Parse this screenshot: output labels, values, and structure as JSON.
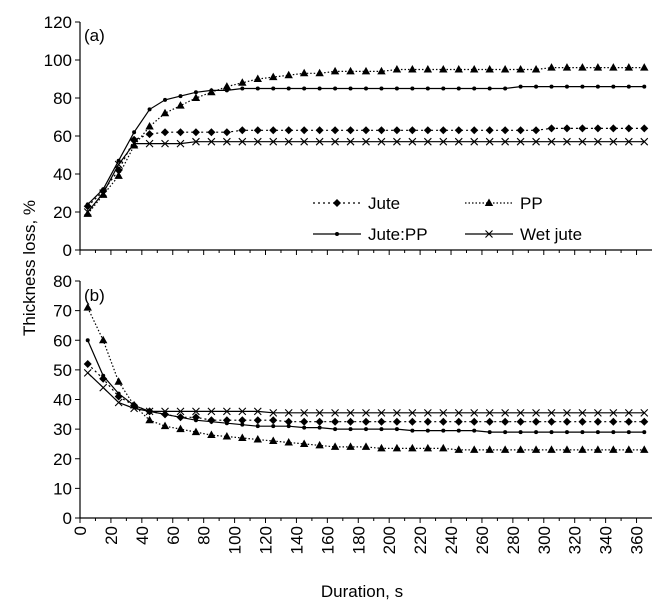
{
  "chart_data": [
    {
      "panel": "(a)",
      "type": "line",
      "ylim": [
        0,
        120
      ],
      "yticks": [
        0,
        20,
        40,
        60,
        80,
        100,
        120
      ],
      "xlim": [
        0,
        370
      ],
      "x": [
        5,
        15,
        25,
        35,
        45,
        55,
        65,
        75,
        85,
        95,
        105,
        115,
        125,
        135,
        145,
        155,
        165,
        175,
        185,
        195,
        205,
        215,
        225,
        235,
        245,
        255,
        265,
        275,
        285,
        295,
        305,
        315,
        325,
        335,
        345,
        355,
        365
      ],
      "series": [
        {
          "name": "Jute",
          "values": [
            23,
            31,
            42,
            58,
            61,
            62,
            62,
            62,
            62,
            62,
            63,
            63,
            63,
            63,
            63,
            63,
            63,
            63,
            63,
            63,
            63,
            63,
            63,
            63,
            63,
            63,
            63,
            63,
            63,
            63,
            64,
            64,
            64,
            64,
            64,
            64,
            64
          ]
        },
        {
          "name": "PP",
          "values": [
            19,
            29,
            39,
            55,
            65,
            72,
            76,
            80,
            83,
            86,
            88,
            90,
            91,
            92,
            93,
            93,
            94,
            94,
            94,
            94,
            95,
            95,
            95,
            95,
            95,
            95,
            95,
            95,
            95,
            95,
            96,
            96,
            96,
            96,
            96,
            96,
            96
          ]
        },
        {
          "name": "Jute:PP",
          "values": [
            24,
            32,
            47,
            62,
            74,
            79,
            81,
            83,
            84,
            84,
            85,
            85,
            85,
            85,
            85,
            85,
            85,
            85,
            85,
            85,
            85,
            85,
            85,
            85,
            85,
            85,
            85,
            85,
            86,
            86,
            86,
            86,
            86,
            86,
            86,
            86,
            86
          ]
        },
        {
          "name": "Wet jute",
          "values": [
            20,
            30,
            45,
            56,
            56,
            56,
            56,
            57,
            57,
            57,
            57,
            57,
            57,
            57,
            57,
            57,
            57,
            57,
            57,
            57,
            57,
            57,
            57,
            57,
            57,
            57,
            57,
            57,
            57,
            57,
            57,
            57,
            57,
            57,
            57,
            57,
            57
          ]
        }
      ],
      "legend": [
        "Jute",
        "PP",
        "Jute:PP",
        "Wet jute"
      ]
    },
    {
      "panel": "(b)",
      "type": "line",
      "ylim": [
        0,
        80
      ],
      "yticks": [
        0,
        10,
        20,
        30,
        40,
        50,
        60,
        70,
        80
      ],
      "xlim": [
        0,
        370
      ],
      "xticks": [
        0,
        20,
        40,
        60,
        80,
        100,
        120,
        140,
        160,
        180,
        200,
        220,
        240,
        260,
        280,
        300,
        320,
        340,
        360
      ],
      "x": [
        5,
        15,
        25,
        35,
        45,
        55,
        65,
        75,
        85,
        95,
        105,
        115,
        125,
        135,
        145,
        155,
        165,
        175,
        185,
        195,
        205,
        215,
        225,
        235,
        245,
        255,
        265,
        275,
        285,
        295,
        305,
        315,
        325,
        335,
        345,
        355,
        365
      ],
      "series": [
        {
          "name": "Jute",
          "values": [
            52,
            47,
            41,
            38,
            36,
            35,
            34,
            34,
            33,
            33,
            33,
            33,
            33,
            32.5,
            32.5,
            32.5,
            32.5,
            32.5,
            32.5,
            32.5,
            32.5,
            32.5,
            32.5,
            32.5,
            32.5,
            32.5,
            32.5,
            32.5,
            32.5,
            32.5,
            32.5,
            32.5,
            32.5,
            32.5,
            32.5,
            32.5,
            32.5
          ]
        },
        {
          "name": "PP",
          "values": [
            71,
            60,
            46,
            38,
            33,
            31,
            30,
            29,
            28,
            27.5,
            27,
            26.5,
            26,
            25.5,
            25,
            24.5,
            24,
            24,
            24,
            23.5,
            23.5,
            23.5,
            23.5,
            23.5,
            23,
            23,
            23,
            23,
            23,
            23,
            23,
            23,
            23,
            23,
            23,
            23,
            23
          ]
        },
        {
          "name": "Jute:PP",
          "values": [
            60,
            48,
            42,
            38,
            36,
            35,
            34,
            33,
            32.5,
            32,
            31.5,
            31,
            31,
            31,
            30.5,
            30.5,
            30,
            30,
            30,
            30,
            30,
            29.5,
            29.5,
            29.5,
            29.5,
            29.5,
            29,
            29,
            29,
            29,
            29,
            29,
            29,
            29,
            29,
            29,
            29
          ]
        },
        {
          "name": "Wet jute",
          "values": [
            49,
            44,
            39,
            37,
            36,
            36,
            36,
            36,
            36,
            36,
            36,
            36,
            35.5,
            35.5,
            35.5,
            35.5,
            35.5,
            35.5,
            35.5,
            35.5,
            35.5,
            35.5,
            35.5,
            35.5,
            35.5,
            35.5,
            35.5,
            35.5,
            35.5,
            35.5,
            35.5,
            35.5,
            35.5,
            35.5,
            35.5,
            35.5,
            35.5
          ]
        }
      ]
    }
  ],
  "ylabel": "Thickness loss, %",
  "xlabel": "Duration, s"
}
